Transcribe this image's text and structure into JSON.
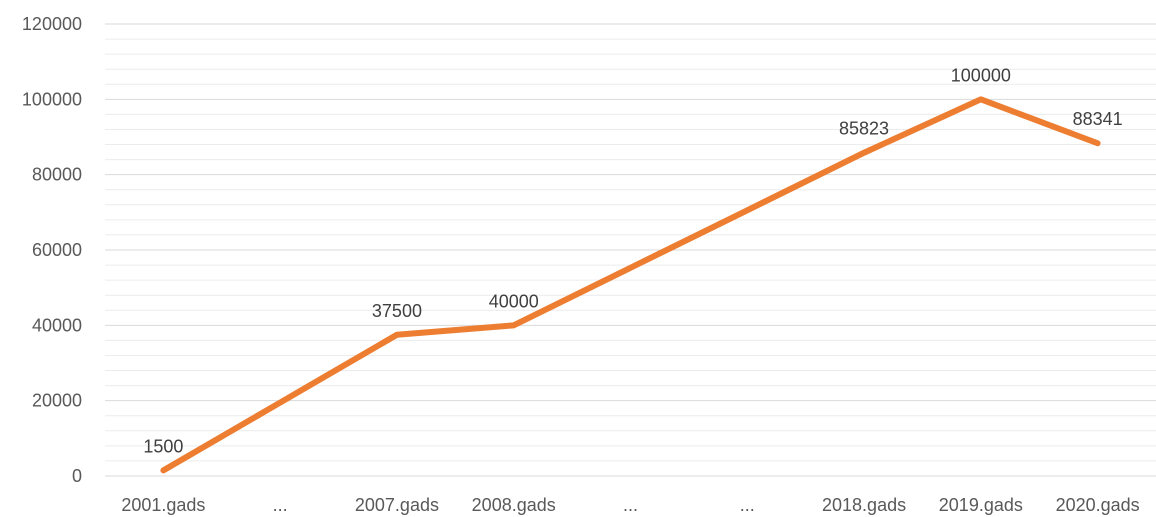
{
  "chart_data": {
    "type": "line",
    "categories": [
      "2001.gads",
      "...",
      "2007.gads",
      "2008.gads",
      "...",
      "...",
      "2018.gads",
      "2019.gads",
      "2020.gads"
    ],
    "series": [
      {
        "values": [
          1500,
          19500,
          37500,
          40000,
          55274,
          70548,
          85823,
          100000,
          88341
        ],
        "color": "#ED7D31",
        "labeled": [
          true,
          false,
          true,
          true,
          false,
          false,
          true,
          true,
          true
        ]
      }
    ],
    "data_labels": [
      "1500",
      "",
      "37500",
      "40000",
      "",
      "",
      "85823",
      "100000",
      "88341"
    ],
    "ylim": [
      0,
      120000
    ],
    "y_ticks": [
      "0",
      "20000",
      "40000",
      "60000",
      "80000",
      "100000",
      "120000"
    ],
    "y_minor_step": 4000,
    "grid": true,
    "title": "",
    "xlabel": "",
    "ylabel": ""
  }
}
